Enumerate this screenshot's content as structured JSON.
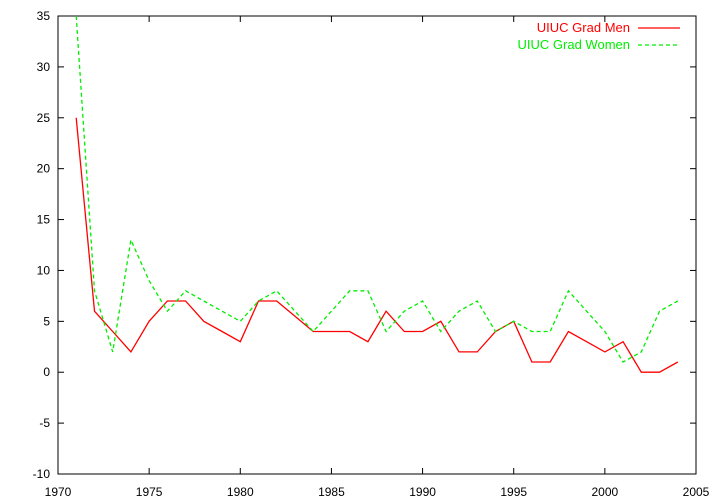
{
  "chart_data": {
    "type": "line",
    "title": "",
    "xlabel": "",
    "ylabel": "",
    "xlim": [
      1970,
      2005
    ],
    "ylim": [
      -10,
      35
    ],
    "xticks": [
      1970,
      1975,
      1980,
      1985,
      1990,
      1995,
      2000,
      2005
    ],
    "yticks": [
      -10,
      -5,
      0,
      5,
      10,
      15,
      20,
      25,
      30,
      35
    ],
    "grid": false,
    "legend_position": "top-right",
    "x": [
      1971,
      1972,
      1973,
      1974,
      1975,
      1976,
      1977,
      1978,
      1979,
      1980,
      1981,
      1982,
      1983,
      1984,
      1985,
      1986,
      1987,
      1988,
      1989,
      1990,
      1991,
      1992,
      1993,
      1994,
      1995,
      1996,
      1997,
      1998,
      1999,
      2000,
      2001,
      2002,
      2003,
      2004
    ],
    "series": [
      {
        "name": "UIUC Grad Men",
        "color": "#ff0000",
        "dash": "solid",
        "values": [
          25,
          6,
          4,
          2,
          5,
          7,
          7,
          5,
          4,
          3,
          7,
          7,
          5.5,
          4,
          4,
          4,
          3,
          6,
          4,
          4,
          5,
          2,
          2,
          4,
          5,
          1,
          1,
          4,
          3,
          2,
          3,
          0,
          0,
          1
        ]
      },
      {
        "name": "UIUC Grad Women",
        "color": "#00ee00",
        "dash": "dashed",
        "values": [
          35,
          8,
          2,
          13,
          9,
          6,
          8,
          7,
          6,
          5,
          7,
          8,
          6,
          4,
          6,
          8,
          8,
          4,
          6,
          7,
          4,
          6,
          7,
          4,
          5,
          4,
          4,
          8,
          6,
          4,
          1,
          2,
          6,
          7
        ]
      }
    ]
  }
}
